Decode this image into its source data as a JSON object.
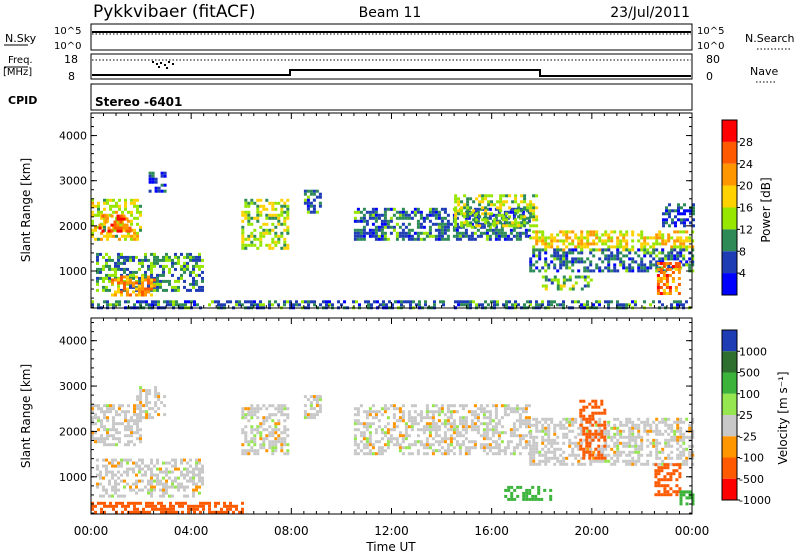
{
  "header": {
    "station": "Pykkvibaer (fitACF)",
    "beam": "Beam 11",
    "date": "23/Jul/2011"
  },
  "status_panels": {
    "sky_label": "N.Sky",
    "sky_ticks": [
      "10^5",
      "10^0"
    ],
    "search_label": "N.Search",
    "search_ticks": [
      "10^5",
      "10^0"
    ],
    "freq_label_line1": "Freq.",
    "freq_label_line2": "[MHz]",
    "freq_ticks": [
      "18",
      "8"
    ],
    "nave_label": "Nave",
    "nave_ticks": [
      "80",
      "0"
    ],
    "cpid_label": "CPID",
    "cpid_value": "Stereo -6401"
  },
  "axes": {
    "xlabel": "Time UT",
    "x_ticks": [
      "00:00",
      "04:00",
      "08:00",
      "12:00",
      "16:00",
      "20:00",
      "00:00"
    ],
    "ylabel": "Slant Range [km]",
    "y_ticks": [
      "4000",
      "3000",
      "2000",
      "1000"
    ]
  },
  "power_colorbar": {
    "label": "Power [dB]",
    "ticks": [
      "28",
      "24",
      "20",
      "16",
      "12",
      "8",
      "4"
    ],
    "colors": [
      "#ff0000",
      "#ff5a00",
      "#ff9600",
      "#ffd200",
      "#96e600",
      "#2e8b57",
      "#1e3cb4",
      "#0000ff"
    ]
  },
  "velocity_colorbar": {
    "label": "Velocity [m s⁻¹]",
    "ticks": [
      "1000",
      "500",
      "100",
      "25",
      "-25",
      "-100",
      "-500",
      "-1000"
    ],
    "colors": [
      "#1e3cb4",
      "#2e6e2e",
      "#3cb43c",
      "#96e650",
      "#c8c8c8",
      "#ff9600",
      "#ff5a00",
      "#ff0000"
    ]
  },
  "chart_data": [
    {
      "type": "heatmap",
      "name": "power",
      "xlabel": "Time UT",
      "ylabel": "Slant Range [km]",
      "x_range_hours": [
        0,
        24
      ],
      "y_range_km": [
        180,
        4500
      ],
      "colorbar": "Power [dB]",
      "regions": [
        {
          "t": [
            0.0,
            2.0
          ],
          "r": [
            1700,
            2600
          ],
          "v": 16
        },
        {
          "t": [
            0.3,
            1.5
          ],
          "r": [
            1900,
            2250
          ],
          "v": 26
        },
        {
          "t": [
            2.3,
            2.9
          ],
          "r": [
            2800,
            3200
          ],
          "v": 6
        },
        {
          "t": [
            0.2,
            4.5
          ],
          "r": [
            600,
            1400
          ],
          "v": 10
        },
        {
          "t": [
            0.8,
            2.5
          ],
          "r": [
            500,
            900
          ],
          "v": 22
        },
        {
          "t": [
            6.0,
            7.8
          ],
          "r": [
            1500,
            2600
          ],
          "v": 14
        },
        {
          "t": [
            8.5,
            9.2
          ],
          "r": [
            2300,
            2800
          ],
          "v": 8
        },
        {
          "t": [
            10.5,
            17.5
          ],
          "r": [
            1700,
            2400
          ],
          "v": 8
        },
        {
          "t": [
            14.5,
            17.8
          ],
          "r": [
            2000,
            2700
          ],
          "v": 14
        },
        {
          "t": [
            17.5,
            24.0
          ],
          "r": [
            1500,
            1900
          ],
          "v": 18
        },
        {
          "t": [
            17.5,
            24.0
          ],
          "r": [
            1000,
            1500
          ],
          "v": 8
        },
        {
          "t": [
            18.0,
            20.0
          ],
          "r": [
            600,
            900
          ],
          "v": 12
        },
        {
          "t": [
            22.6,
            23.5
          ],
          "r": [
            500,
            1200
          ],
          "v": 24
        },
        {
          "t": [
            22.8,
            24.0
          ],
          "r": [
            2000,
            2500
          ],
          "v": 6
        },
        {
          "t": [
            0.0,
            24.0
          ],
          "r": [
            200,
            350
          ],
          "v": 8
        }
      ]
    },
    {
      "type": "heatmap",
      "name": "velocity",
      "xlabel": "Time UT",
      "ylabel": "Slant Range [km]",
      "x_range_hours": [
        0,
        24
      ],
      "y_range_km": [
        180,
        4500
      ],
      "colorbar": "Velocity [m s⁻¹]",
      "regions": [
        {
          "t": [
            0.0,
            2.0
          ],
          "r": [
            1700,
            2600
          ],
          "v": 0
        },
        {
          "t": [
            1.8,
            2.9
          ],
          "r": [
            2300,
            3000
          ],
          "v": 0
        },
        {
          "t": [
            0.2,
            4.5
          ],
          "r": [
            600,
            1400
          ],
          "v": 0
        },
        {
          "t": [
            0.0,
            6.0
          ],
          "r": [
            200,
            450
          ],
          "v": -150
        },
        {
          "t": [
            6.0,
            7.8
          ],
          "r": [
            1500,
            2600
          ],
          "v": 0
        },
        {
          "t": [
            8.5,
            9.2
          ],
          "r": [
            2300,
            2800
          ],
          "v": 0
        },
        {
          "t": [
            10.5,
            17.5
          ],
          "r": [
            1500,
            2600
          ],
          "v": 0
        },
        {
          "t": [
            17.5,
            24.0
          ],
          "r": [
            1300,
            2300
          ],
          "v": 0
        },
        {
          "t": [
            16.5,
            18.3
          ],
          "r": [
            500,
            800
          ],
          "v": 150
        },
        {
          "t": [
            19.5,
            20.5
          ],
          "r": [
            1400,
            2700
          ],
          "v": -150
        },
        {
          "t": [
            22.5,
            23.5
          ],
          "r": [
            600,
            1300
          ],
          "v": -200
        },
        {
          "t": [
            23.5,
            24.0
          ],
          "r": [
            400,
            700
          ],
          "v": 300
        }
      ]
    }
  ]
}
